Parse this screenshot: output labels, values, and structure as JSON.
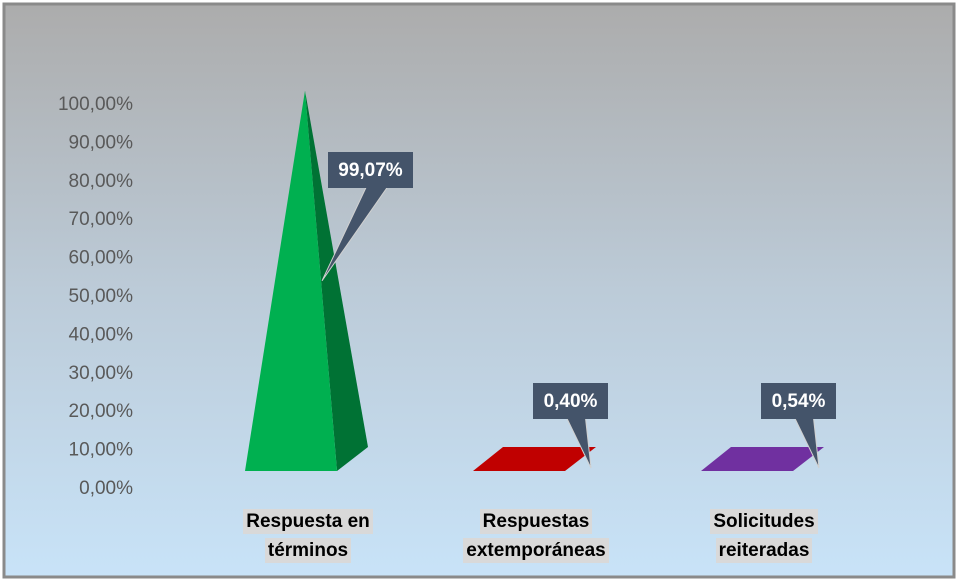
{
  "chart_data": {
    "type": "pyramid",
    "categories": [
      "Respuesta en términos",
      "Respuestas extemporáneas",
      "Solicitudes reiteradas"
    ],
    "values": [
      99.07,
      0.4,
      0.54
    ],
    "value_labels": [
      "99,07%",
      "0,40%",
      "0,54%"
    ],
    "colors": [
      "#00b050",
      "#c00000",
      "#7030a0"
    ],
    "ylim": [
      0,
      100
    ],
    "yticks": [
      {
        "value": 0,
        "label": "0,00%"
      },
      {
        "value": 10,
        "label": "10,00%"
      },
      {
        "value": 20,
        "label": "20,00%"
      },
      {
        "value": 30,
        "label": "30,00%"
      },
      {
        "value": 40,
        "label": "40,00%"
      },
      {
        "value": 50,
        "label": "50,00%"
      },
      {
        "value": 60,
        "label": "60,00%"
      },
      {
        "value": 70,
        "label": "70,00%"
      },
      {
        "value": 80,
        "label": "80,00%"
      },
      {
        "value": 90,
        "label": "90,00%"
      },
      {
        "value": 100,
        "label": "100,00%"
      }
    ]
  }
}
